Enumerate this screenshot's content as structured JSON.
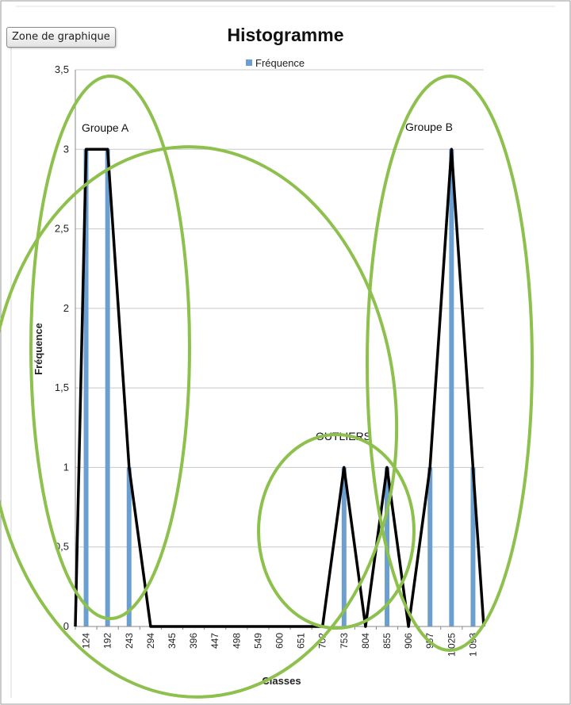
{
  "toolbar": {
    "zone_label": "Zone de graphique"
  },
  "colors": {
    "bar": "#6a9fd0",
    "polygon": "#000000",
    "ellipse": "#8dc04c",
    "grid": "#c8c8c8"
  },
  "chart_data": {
    "type": "bar",
    "title": "Histogramme",
    "xlabel": "Classes",
    "ylabel": "Fréquence",
    "legend": {
      "entries": [
        "Fréquence"
      ],
      "placement": "top"
    },
    "ylim": [
      0,
      3.5
    ],
    "yticks": [
      "0",
      "0,5",
      "1",
      "1,5",
      "2",
      "2,5",
      "3",
      "3,5"
    ],
    "categories": [
      "124",
      "192",
      "243",
      "294",
      "345",
      "396",
      "447",
      "498",
      "549",
      "600",
      "651",
      "702",
      "753",
      "804",
      "855",
      "906",
      "957",
      "1 025",
      "1 093"
    ],
    "series": [
      {
        "name": "Fréquence",
        "values": [
          3,
          3,
          1,
          0,
          0,
          0,
          0,
          0,
          0,
          0,
          0,
          0,
          1,
          0,
          1,
          0,
          1,
          3,
          1
        ]
      }
    ],
    "annotations": [
      "Groupe A",
      "Groupe B",
      "OUTLIERS"
    ]
  }
}
